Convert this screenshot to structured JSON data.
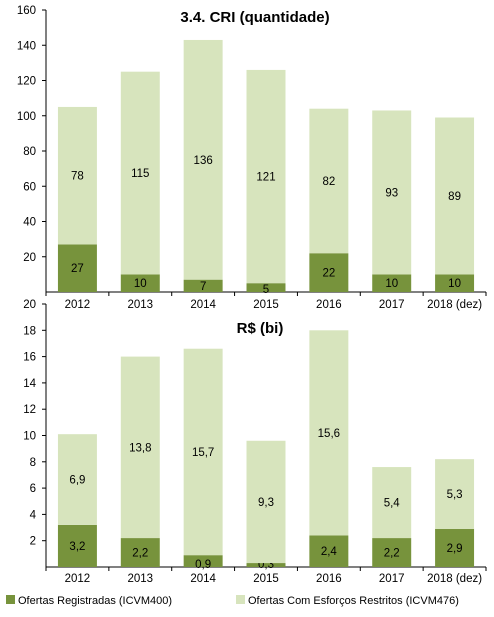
{
  "colors": {
    "registered": "#77933C",
    "restricted": "#D7E4BD",
    "axis": "#000000"
  },
  "chart_data": [
    {
      "type": "bar",
      "stacked": true,
      "title": "3.4. CRI (quantidade)",
      "categories": [
        "2012",
        "2013",
        "2014",
        "2015",
        "2016",
        "2017",
        "2018 (dez)"
      ],
      "series": [
        {
          "name": "Ofertas Registradas (ICVM400)",
          "values": [
            27,
            10,
            7,
            5,
            22,
            10,
            10
          ]
        },
        {
          "name": "Ofertas Com Esforços Restritos (ICVM476)",
          "values": [
            78,
            115,
            136,
            121,
            82,
            93,
            89
          ]
        }
      ],
      "data_labels": [
        [
          "27",
          "10",
          "7",
          "5",
          "22",
          "10",
          "10"
        ],
        [
          "78",
          "115",
          "136",
          "121",
          "82",
          "93",
          "89"
        ]
      ],
      "ylim": [
        0,
        160
      ],
      "yticks": [
        "20",
        "40",
        "60",
        "80",
        "100",
        "120",
        "140",
        "160"
      ],
      "ytick_values": [
        20,
        40,
        60,
        80,
        100,
        120,
        140,
        160
      ],
      "grid": false
    },
    {
      "type": "bar",
      "stacked": true,
      "title": "R$ (bi)",
      "categories": [
        "2012",
        "2013",
        "2014",
        "2015",
        "2016",
        "2017",
        "2018 (dez)"
      ],
      "series": [
        {
          "name": "Ofertas Registradas (ICVM400)",
          "values": [
            3.2,
            2.2,
            0.9,
            0.3,
            2.4,
            2.2,
            2.9
          ]
        },
        {
          "name": "Ofertas Com Esforços Restritos (ICVM476)",
          "values": [
            6.9,
            13.8,
            15.7,
            9.3,
            15.6,
            5.4,
            5.3
          ]
        }
      ],
      "data_labels": [
        [
          "3,2",
          "2,2",
          "0,9",
          "0,3",
          "2,4",
          "2,2",
          "2,9"
        ],
        [
          "6,9",
          "13,8",
          "15,7",
          "9,3",
          "15,6",
          "5,4",
          "5,3"
        ]
      ],
      "ylim": [
        0,
        20
      ],
      "yticks": [
        "2",
        "4",
        "6",
        "8",
        "10",
        "12",
        "14",
        "16",
        "18",
        "20"
      ],
      "ytick_values": [
        2,
        4,
        6,
        8,
        10,
        12,
        14,
        16,
        18,
        20
      ],
      "grid": false,
      "legend": {
        "position": "bottom",
        "entries": [
          "Ofertas Registradas (ICVM400)",
          "Ofertas Com Esforços Restritos (ICVM476)"
        ]
      }
    }
  ]
}
